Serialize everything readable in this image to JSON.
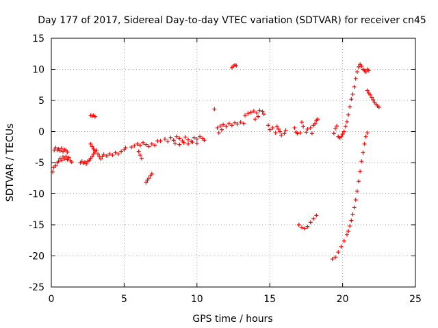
{
  "chart_data": {
    "type": "scatter",
    "title": "Day 177 of 2017, Sidereal Day-to-day VTEC variation (SDTVAR) for receiver cn45",
    "xlabel": "GPS time / hours",
    "ylabel": "SDTVAR / TECUs",
    "xlim": [
      0,
      25
    ],
    "ylim": [
      -25,
      15
    ],
    "xticks": [
      0,
      5,
      10,
      15,
      20,
      25
    ],
    "yticks": [
      -25,
      -20,
      -15,
      -10,
      -5,
      0,
      5,
      10,
      15
    ],
    "grid": true,
    "marker": "+",
    "color": "#ff0000",
    "series": [
      {
        "name": "SDTVAR",
        "points": [
          [
            0.1,
            -6.5
          ],
          [
            0.15,
            -5.8
          ],
          [
            0.2,
            -3.0
          ],
          [
            0.3,
            -2.6
          ],
          [
            0.4,
            -3.0
          ],
          [
            0.5,
            -2.8
          ],
          [
            0.6,
            -3.1
          ],
          [
            0.7,
            -2.7
          ],
          [
            0.8,
            -3.2
          ],
          [
            0.9,
            -2.9
          ],
          [
            1.0,
            -3.0
          ],
          [
            1.1,
            -3.3
          ],
          [
            0.3,
            -5.5
          ],
          [
            0.4,
            -5.0
          ],
          [
            0.5,
            -4.8
          ],
          [
            0.6,
            -4.3
          ],
          [
            0.7,
            -4.6
          ],
          [
            0.8,
            -4.1
          ],
          [
            0.9,
            -4.4
          ],
          [
            1.0,
            -4.0
          ],
          [
            1.1,
            -4.5
          ],
          [
            1.2,
            -4.2
          ],
          [
            1.3,
            -4.7
          ],
          [
            1.4,
            -4.9
          ],
          [
            2.0,
            -5.0
          ],
          [
            2.1,
            -4.8
          ],
          [
            2.2,
            -5.1
          ],
          [
            2.3,
            -4.9
          ],
          [
            2.4,
            -5.2
          ],
          [
            2.5,
            -4.8
          ],
          [
            2.6,
            -4.6
          ],
          [
            2.7,
            -4.3
          ],
          [
            2.8,
            -4.0
          ],
          [
            2.9,
            -3.6
          ],
          [
            3.0,
            -3.3
          ],
          [
            3.1,
            -3.0
          ],
          [
            2.7,
            -2.0
          ],
          [
            2.8,
            -2.4
          ],
          [
            2.9,
            -2.8
          ],
          [
            3.0,
            -3.1
          ],
          [
            3.2,
            -3.6
          ],
          [
            3.3,
            -4.0
          ],
          [
            3.4,
            -4.4
          ],
          [
            3.5,
            -4.0
          ],
          [
            3.6,
            -3.7
          ],
          [
            3.8,
            -3.9
          ],
          [
            4.0,
            -3.6
          ],
          [
            4.2,
            -3.8
          ],
          [
            4.4,
            -3.4
          ],
          [
            4.6,
            -3.6
          ],
          [
            4.8,
            -3.2
          ],
          [
            5.0,
            -2.9
          ],
          [
            5.1,
            -2.6
          ],
          [
            2.7,
            2.6
          ],
          [
            2.8,
            2.5
          ],
          [
            2.9,
            2.6
          ],
          [
            3.0,
            2.4
          ],
          [
            5.5,
            -2.5
          ],
          [
            5.7,
            -2.3
          ],
          [
            5.9,
            -2.0
          ],
          [
            6.1,
            -2.2
          ],
          [
            6.3,
            -1.8
          ],
          [
            6.5,
            -2.1
          ],
          [
            6.7,
            -2.4
          ],
          [
            6.9,
            -2.0
          ],
          [
            7.1,
            -2.2
          ],
          [
            7.3,
            -1.5
          ],
          [
            6.0,
            -3.2
          ],
          [
            6.1,
            -3.8
          ],
          [
            6.2,
            -4.3
          ],
          [
            6.5,
            -8.2
          ],
          [
            6.6,
            -7.8
          ],
          [
            6.7,
            -7.5
          ],
          [
            6.8,
            -7.1
          ],
          [
            6.9,
            -6.8
          ],
          [
            7.5,
            -1.5
          ],
          [
            7.8,
            -1.2
          ],
          [
            8.0,
            -1.6
          ],
          [
            8.2,
            -1.0
          ],
          [
            8.4,
            -1.4
          ],
          [
            8.6,
            -0.8
          ],
          [
            8.8,
            -1.1
          ],
          [
            9.0,
            -1.5
          ],
          [
            9.2,
            -0.9
          ],
          [
            9.4,
            -1.3
          ],
          [
            9.6,
            -1.6
          ],
          [
            9.8,
            -1.0
          ],
          [
            10.0,
            -1.2
          ],
          [
            10.2,
            -0.8
          ],
          [
            10.4,
            -1.1
          ],
          [
            10.5,
            -1.4
          ],
          [
            8.5,
            -1.9
          ],
          [
            8.8,
            -2.1
          ],
          [
            9.1,
            -1.8
          ],
          [
            9.4,
            -2.0
          ],
          [
            9.7,
            -1.7
          ],
          [
            10.0,
            -1.9
          ],
          [
            11.2,
            3.6
          ],
          [
            11.4,
            0.6
          ],
          [
            11.5,
            -0.2
          ],
          [
            11.6,
            0.9
          ],
          [
            11.7,
            0.3
          ],
          [
            11.8,
            1.1
          ],
          [
            12.0,
            0.8
          ],
          [
            12.2,
            1.3
          ],
          [
            12.4,
            1.0
          ],
          [
            12.6,
            1.4
          ],
          [
            12.8,
            1.2
          ],
          [
            13.0,
            1.5
          ],
          [
            13.2,
            1.3
          ],
          [
            13.3,
            2.6
          ],
          [
            13.5,
            2.9
          ],
          [
            13.7,
            3.1
          ],
          [
            13.9,
            3.3
          ],
          [
            14.1,
            3.0
          ],
          [
            14.3,
            3.4
          ],
          [
            14.5,
            3.2
          ],
          [
            14.6,
            2.8
          ],
          [
            14.0,
            2.0
          ],
          [
            14.2,
            2.4
          ],
          [
            12.4,
            10.3
          ],
          [
            12.5,
            10.5
          ],
          [
            12.6,
            10.7
          ],
          [
            12.7,
            10.6
          ],
          [
            14.9,
            1.0
          ],
          [
            15.0,
            0.3
          ],
          [
            15.2,
            0.6
          ],
          [
            15.4,
            -0.2
          ],
          [
            15.6,
            0.4
          ],
          [
            15.8,
            -0.6
          ],
          [
            16.0,
            -0.3
          ],
          [
            16.1,
            0.2
          ],
          [
            15.5,
            0.8
          ],
          [
            15.7,
            0.0
          ],
          [
            16.7,
            0.6
          ],
          [
            16.8,
            -0.1
          ],
          [
            16.9,
            -0.3
          ],
          [
            17.1,
            -0.2
          ],
          [
            17.3,
            0.8
          ],
          [
            17.5,
            -0.1
          ],
          [
            17.6,
            0.4
          ],
          [
            17.8,
            0.6
          ],
          [
            17.9,
            -0.3
          ],
          [
            18.0,
            1.0
          ],
          [
            18.1,
            1.3
          ],
          [
            18.2,
            1.8
          ],
          [
            18.3,
            2.0
          ],
          [
            17.2,
            1.5
          ],
          [
            17.0,
            -15.0
          ],
          [
            17.2,
            -15.4
          ],
          [
            17.4,
            -15.6
          ],
          [
            17.6,
            -15.3
          ],
          [
            17.8,
            -14.6
          ],
          [
            18.0,
            -14.0
          ],
          [
            18.2,
            -13.5
          ],
          [
            19.4,
            -0.3
          ],
          [
            19.5,
            0.5
          ],
          [
            19.6,
            0.9
          ],
          [
            19.7,
            -0.8
          ],
          [
            19.8,
            -1.0
          ],
          [
            19.9,
            -0.8
          ],
          [
            20.0,
            -0.4
          ],
          [
            20.1,
            0.0
          ],
          [
            20.2,
            0.8
          ],
          [
            20.3,
            1.6
          ],
          [
            20.4,
            2.7
          ],
          [
            20.5,
            4.0
          ],
          [
            20.6,
            5.2
          ],
          [
            20.7,
            6.0
          ],
          [
            20.8,
            7.2
          ],
          [
            20.9,
            8.5
          ],
          [
            21.0,
            9.6
          ],
          [
            21.1,
            10.4
          ],
          [
            21.2,
            10.8
          ],
          [
            21.3,
            10.5
          ],
          [
            21.4,
            10.0
          ],
          [
            21.5,
            9.8
          ],
          [
            21.6,
            9.6
          ],
          [
            21.7,
            10.0
          ],
          [
            21.8,
            9.8
          ],
          [
            21.7,
            6.6
          ],
          [
            21.8,
            6.2
          ],
          [
            21.9,
            5.9
          ],
          [
            22.0,
            5.5
          ],
          [
            22.1,
            5.1
          ],
          [
            22.2,
            4.7
          ],
          [
            22.3,
            4.4
          ],
          [
            22.4,
            4.1
          ],
          [
            22.5,
            3.9
          ],
          [
            19.3,
            -20.5
          ],
          [
            19.5,
            -20.2
          ],
          [
            19.7,
            -19.4
          ],
          [
            19.9,
            -18.5
          ],
          [
            20.1,
            -17.6
          ],
          [
            20.3,
            -16.6
          ],
          [
            20.4,
            -16.0
          ],
          [
            20.5,
            -15.2
          ],
          [
            20.6,
            -14.3
          ],
          [
            20.7,
            -13.3
          ],
          [
            20.8,
            -12.2
          ],
          [
            20.9,
            -11.0
          ],
          [
            21.0,
            -9.6
          ],
          [
            21.1,
            -8.0
          ],
          [
            21.2,
            -6.4
          ],
          [
            21.3,
            -4.8
          ],
          [
            21.4,
            -3.4
          ],
          [
            21.5,
            -2.0
          ],
          [
            21.6,
            -0.8
          ],
          [
            21.7,
            -0.2
          ]
        ]
      }
    ]
  }
}
